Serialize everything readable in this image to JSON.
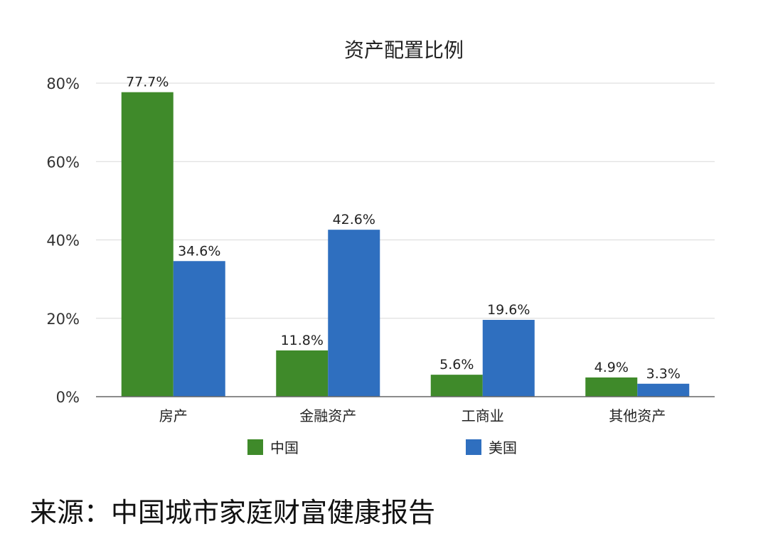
{
  "source_note": "来源：中国城市家庭财富健康报告",
  "chart_data": {
    "type": "bar",
    "title": "资产配置比例",
    "categories": [
      "房产",
      "金融资产",
      "工商业",
      "其他资产"
    ],
    "series": [
      {
        "name": "中国",
        "color": "#3f8a2a",
        "values": [
          77.7,
          11.8,
          5.6,
          4.9
        ],
        "labels": [
          "77.7%",
          "11.8%",
          "5.6%",
          "4.9%"
        ]
      },
      {
        "name": "美国",
        "color": "#2f6fbf",
        "values": [
          34.6,
          42.6,
          19.6,
          3.3
        ],
        "labels": [
          "34.6%",
          "42.6%",
          "19.6%",
          "3.3%"
        ]
      }
    ],
    "ylim": [
      0,
      80
    ],
    "yticks": [
      0,
      20,
      40,
      60,
      80
    ],
    "ytick_labels": [
      "0%",
      "20%",
      "40%",
      "60%",
      "80%"
    ],
    "grid": true,
    "legend_position": "bottom"
  }
}
